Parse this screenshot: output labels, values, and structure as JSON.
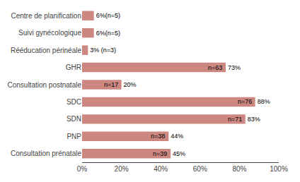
{
  "chart_data": {
    "type": "bar",
    "orientation": "horizontal",
    "categories": [
      "Centre de planification",
      "Suivi gynécologique",
      "Rééducation périnéale",
      "GHR",
      "Consultation postnatale",
      "SDC",
      "SDN",
      "PNP",
      "Consultation prénatale"
    ],
    "values": [
      6,
      6,
      3,
      73,
      20,
      88,
      83,
      44,
      45
    ],
    "value_labels": [
      "6%(n=5)",
      "6%(n=5)",
      "3% (n=3)",
      "73%",
      "20%",
      "88%",
      "83%",
      "44%",
      "45%"
    ],
    "n_labels": [
      null,
      null,
      null,
      "n=63",
      "n=17",
      "n=76",
      "n=71",
      "n=38",
      "n=39"
    ],
    "data_labels": true,
    "color": "#cc8880",
    "xlim": [
      0,
      100
    ],
    "xticks": [
      {
        "value": 0,
        "label": "0%"
      },
      {
        "value": 20,
        "label": "20%"
      },
      {
        "value": 40,
        "label": "40%"
      },
      {
        "value": 60,
        "label": "60%"
      },
      {
        "value": 80,
        "label": "80%"
      },
      {
        "value": 100,
        "label": "100%"
      }
    ],
    "grid": false
  }
}
